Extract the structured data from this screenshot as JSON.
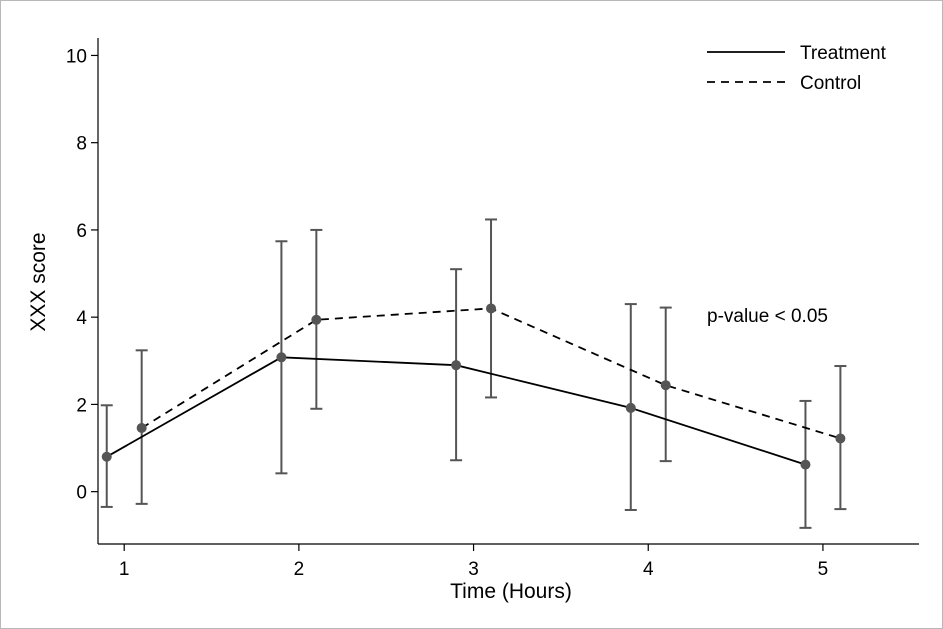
{
  "chart_data": {
    "type": "line",
    "xlabel": "Time (Hours)",
    "ylabel": "XXX score",
    "xlim": [
      0.85,
      5.55
    ],
    "ylim": [
      -1.2,
      10.4
    ],
    "xticks": [
      1,
      2,
      3,
      4,
      5
    ],
    "yticks": [
      0,
      2,
      4,
      6,
      8,
      10
    ],
    "grid": false,
    "legend_position": "top-right",
    "annotation": "p-value < 0.05",
    "series": [
      {
        "name": "Treatment",
        "line_style": "solid",
        "x": [
          0.9,
          1.9,
          2.9,
          3.9,
          4.9
        ],
        "y": [
          0.8,
          3.08,
          2.9,
          1.92,
          0.62
        ],
        "lower": [
          -0.35,
          0.42,
          0.72,
          -0.42,
          -0.83
        ],
        "upper": [
          1.98,
          5.74,
          5.1,
          4.3,
          2.08
        ]
      },
      {
        "name": "Control",
        "line_style": "dashed",
        "x": [
          1.1,
          2.1,
          3.1,
          4.1,
          5.1
        ],
        "y": [
          1.46,
          3.94,
          4.2,
          2.44,
          1.22
        ],
        "lower": [
          -0.28,
          1.9,
          2.16,
          0.7,
          -0.4
        ],
        "upper": [
          3.24,
          6.0,
          6.24,
          4.22,
          2.88
        ]
      }
    ],
    "colors": {
      "line": "#000000",
      "marker": "#555555",
      "error_bar": "#555555"
    }
  }
}
